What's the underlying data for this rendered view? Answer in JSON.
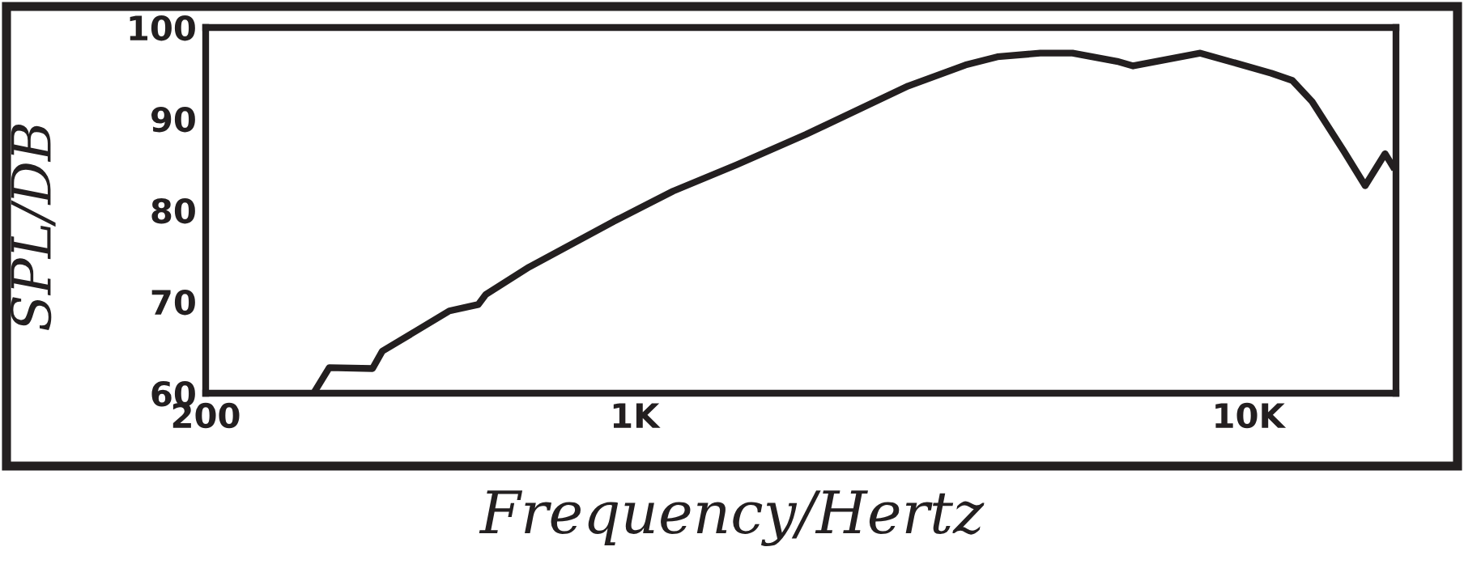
{
  "chart_data": {
    "type": "line",
    "xlabel": "Frequency/Hertz",
    "ylabel": "SPL/DB",
    "log": "x",
    "xlim": [
      200,
      17400
    ],
    "xticks": [
      200,
      {
        "value": 1000,
        "label": "1K"
      },
      {
        "value": 10000,
        "label": "10K"
      }
    ],
    "ylim": [
      60,
      100
    ],
    "yticks": [
      60,
      70,
      80,
      90,
      100
    ],
    "grid": false,
    "marker": "none",
    "line_style": "solid",
    "series": [
      {
        "color": "#231f20",
        "x": [
          303,
          318,
          374,
          388,
          499,
          556,
          572,
          673,
          925,
          1155,
          1468,
          1900,
          2790,
          3460,
          3900,
          4580,
          5170,
          6110,
          6490,
          8350,
          10900,
          11800,
          12700,
          14300,
          15500,
          16700,
          17200
        ],
        "values": [
          60.5,
          62.8,
          62.7,
          64.6,
          69.0,
          69.7,
          70.8,
          73.8,
          78.8,
          82.1,
          85.0,
          88.3,
          93.6,
          95.9,
          96.8,
          97.2,
          97.2,
          96.3,
          95.8,
          97.2,
          95.0,
          94.2,
          91.9,
          86.5,
          82.7,
          86.2,
          84.8
        ]
      }
    ]
  }
}
